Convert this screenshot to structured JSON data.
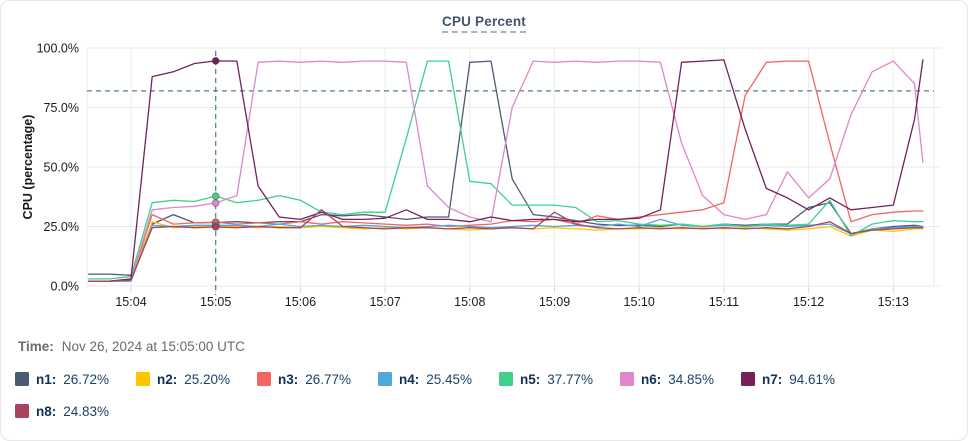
{
  "chart": {
    "title": "CPU Percent",
    "y_axis_label": "CPU (percentage)"
  },
  "time_row": {
    "label": "Time:",
    "value": "Nov 26, 2024 at 15:05:00 UTC"
  },
  "chart_data": {
    "type": "line",
    "title": "CPU Percent",
    "xlabel": "",
    "ylabel": "CPU (percentage)",
    "ylim": [
      0,
      100
    ],
    "grid": true,
    "legend_position": "bottom",
    "y_ticks": [
      {
        "label": "100.0%",
        "value": 100
      },
      {
        "label": "75.0%",
        "value": 75
      },
      {
        "label": "50.0%",
        "value": 50
      },
      {
        "label": "25.0%",
        "value": 25
      },
      {
        "label": "0.0%",
        "value": 0
      }
    ],
    "x_ticks": [
      {
        "label": "15:04",
        "t": 0
      },
      {
        "label": "15:05",
        "t": 1
      },
      {
        "label": "15:06",
        "t": 2
      },
      {
        "label": "15:07",
        "t": 3
      },
      {
        "label": "15:08",
        "t": 4
      },
      {
        "label": "15:09",
        "t": 5
      },
      {
        "label": "15:10",
        "t": 6
      },
      {
        "label": "15:11",
        "t": 7
      },
      {
        "label": "15:12",
        "t": 8
      },
      {
        "label": "15:13",
        "t": 9
      }
    ],
    "threshold_line": {
      "value": 82,
      "style": "dashed",
      "color": "#4e7d92"
    },
    "crosshair": {
      "t": 1,
      "time_label": "Nov 26, 2024 at 15:05:00 UTC",
      "color": "#4e7d92"
    },
    "x_minutes_from_1504": [
      -0.5,
      -0.25,
      0,
      0.25,
      0.5,
      0.75,
      1,
      1.25,
      1.5,
      1.75,
      2,
      2.25,
      2.5,
      2.75,
      3,
      3.25,
      3.5,
      3.75,
      4,
      4.25,
      4.5,
      4.75,
      5,
      5.25,
      5.5,
      5.75,
      6,
      6.25,
      6.5,
      6.75,
      7,
      7.25,
      7.5,
      7.75,
      8,
      8.25,
      8.5,
      8.75,
      9,
      9.25,
      9.35
    ],
    "series": [
      {
        "name": "n1",
        "color": "#4a5b73",
        "value_at_crosshair": 26.72,
        "value_label": "26.72%",
        "values": [
          5,
          5,
          4.5,
          26,
          30,
          26.5,
          26.7,
          27,
          26.5,
          27,
          27,
          30,
          29.5,
          30,
          29,
          28,
          29,
          29,
          94,
          94.5,
          45,
          30,
          29,
          27.5,
          26,
          25.5,
          25.5,
          25,
          26,
          25,
          26,
          25.5,
          26,
          26,
          33,
          35,
          22,
          24,
          25,
          25.5,
          25
        ]
      },
      {
        "name": "n2",
        "color": "#fdc500",
        "value_at_crosshair": 25.2,
        "value_label": "25.20%",
        "values": [
          2,
          2,
          2.5,
          27,
          24.5,
          25,
          25.2,
          25,
          24.5,
          25,
          24.5,
          25,
          24.5,
          24,
          24.5,
          24,
          24.5,
          24,
          23.5,
          24,
          24.5,
          24,
          24.5,
          24,
          23.5,
          24,
          24,
          24.5,
          24,
          24.5,
          24,
          24.5,
          24,
          23.5,
          24,
          25,
          21,
          23.5,
          23,
          24,
          24
        ]
      },
      {
        "name": "n3",
        "color": "#f4655f",
        "value_at_crosshair": 26.77,
        "value_label": "26.77%",
        "values": [
          2,
          2,
          3,
          30,
          26,
          26.5,
          26.8,
          26,
          26.5,
          26,
          27,
          26,
          27,
          26.5,
          26,
          25.5,
          26,
          25,
          25.5,
          26,
          27.5,
          27,
          28,
          26,
          29.5,
          28,
          29,
          30,
          31,
          32,
          35,
          80,
          94,
          94.5,
          94.5,
          60,
          27,
          30,
          31,
          31.5,
          31.5
        ]
      },
      {
        "name": "n4",
        "color": "#4fa8dc",
        "value_at_crosshair": 25.45,
        "value_label": "25.45%",
        "values": [
          2,
          2,
          2,
          25.5,
          25,
          25.5,
          25.5,
          25.5,
          25,
          26,
          25,
          25.5,
          25,
          25.5,
          25,
          24.5,
          25,
          25.5,
          25,
          24.5,
          25,
          25.5,
          25,
          25.5,
          25,
          26,
          25,
          28,
          25.5,
          25,
          25.5,
          25,
          25.5,
          25,
          25.5,
          26,
          22,
          24,
          24.5,
          25,
          25
        ]
      },
      {
        "name": "n5",
        "color": "#3fd08e",
        "value_at_crosshair": 37.77,
        "value_label": "37.77%",
        "values": [
          3,
          3,
          4,
          35,
          36,
          35.5,
          37.8,
          35,
          36,
          38,
          36,
          31,
          30,
          31,
          31,
          62,
          94.5,
          94.5,
          44,
          43,
          34,
          34,
          34,
          33,
          27,
          27.5,
          26,
          25.5,
          26,
          25,
          26,
          25,
          26,
          25.5,
          26,
          36,
          21,
          26,
          27.5,
          27,
          27
        ]
      },
      {
        "name": "n6",
        "color": "#df87c9",
        "value_at_crosshair": 34.85,
        "value_label": "34.85%",
        "values": [
          2,
          2,
          2.5,
          32,
          33,
          33.5,
          34.9,
          38,
          94,
          94.5,
          94,
          94.5,
          94,
          94.5,
          94.5,
          94,
          42,
          33,
          29,
          27,
          75,
          94.5,
          94,
          94.5,
          94,
          94.5,
          94.5,
          94,
          60,
          38,
          30,
          28,
          30,
          48,
          37,
          45,
          72,
          90,
          94.5,
          85,
          52
        ]
      },
      {
        "name": "n7",
        "color": "#74215a",
        "value_at_crosshair": 94.61,
        "value_label": "94.61%",
        "values": [
          2,
          2,
          3,
          88,
          90,
          93.5,
          94.6,
          94.5,
          42,
          29,
          28,
          31,
          28,
          28,
          28.5,
          32,
          28,
          28,
          27,
          29,
          27.5,
          28,
          28,
          27,
          28,
          28,
          28.5,
          32,
          94,
          94.5,
          95,
          66,
          41,
          37,
          32,
          37,
          32,
          33,
          34,
          70,
          95
        ]
      },
      {
        "name": "n8",
        "color": "#a8445c",
        "value_at_crosshair": 24.83,
        "value_label": "24.83%",
        "values": [
          2,
          2,
          2.5,
          24.5,
          25,
          24.5,
          24.8,
          24.5,
          25,
          24.5,
          24.5,
          32,
          25,
          24.5,
          24,
          24.5,
          24.5,
          24,
          24.5,
          24,
          24.5,
          24,
          31,
          26,
          24.5,
          24,
          24.5,
          24,
          24.5,
          24,
          24.5,
          24,
          24.5,
          24,
          25,
          27,
          22,
          23.5,
          24,
          24.5,
          24.5
        ]
      }
    ]
  }
}
